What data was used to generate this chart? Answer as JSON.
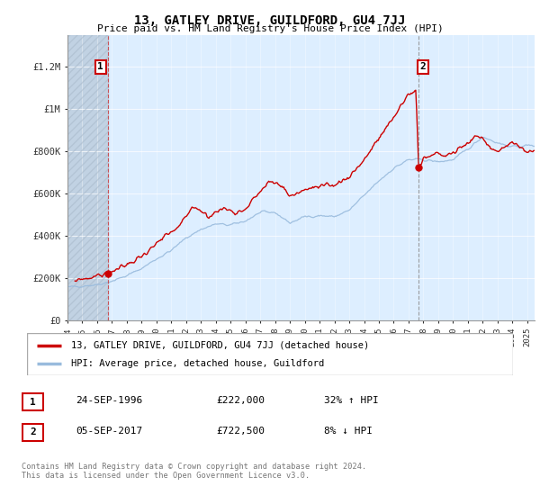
{
  "title": "13, GATLEY DRIVE, GUILDFORD, GU4 7JJ",
  "subtitle": "Price paid vs. HM Land Registry's House Price Index (HPI)",
  "ylabel_ticks": [
    "£0",
    "£200K",
    "£400K",
    "£600K",
    "£800K",
    "£1M",
    "£1.2M"
  ],
  "ytick_values": [
    0,
    200000,
    400000,
    600000,
    800000,
    1000000,
    1200000
  ],
  "ylim": [
    0,
    1350000
  ],
  "xlim_start": 1994.0,
  "xlim_end": 2025.5,
  "sale1_x": 1996.73,
  "sale1_y": 222000,
  "sale2_x": 2017.68,
  "sale2_y": 722500,
  "red_line_color": "#cc0000",
  "blue_line_color": "#99bbdd",
  "chart_bg_color": "#ddeeff",
  "hatch_color": "#bbccdd",
  "legend_red_label": "13, GATLEY DRIVE, GUILDFORD, GU4 7JJ (detached house)",
  "legend_blue_label": "HPI: Average price, detached house, Guildford",
  "table_row1": [
    "1",
    "24-SEP-1996",
    "£222,000",
    "32% ↑ HPI"
  ],
  "table_row2": [
    "2",
    "05-SEP-2017",
    "£722,500",
    "8% ↓ HPI"
  ],
  "footer": "Contains HM Land Registry data © Crown copyright and database right 2024.\nThis data is licensed under the Open Government Licence v3.0."
}
